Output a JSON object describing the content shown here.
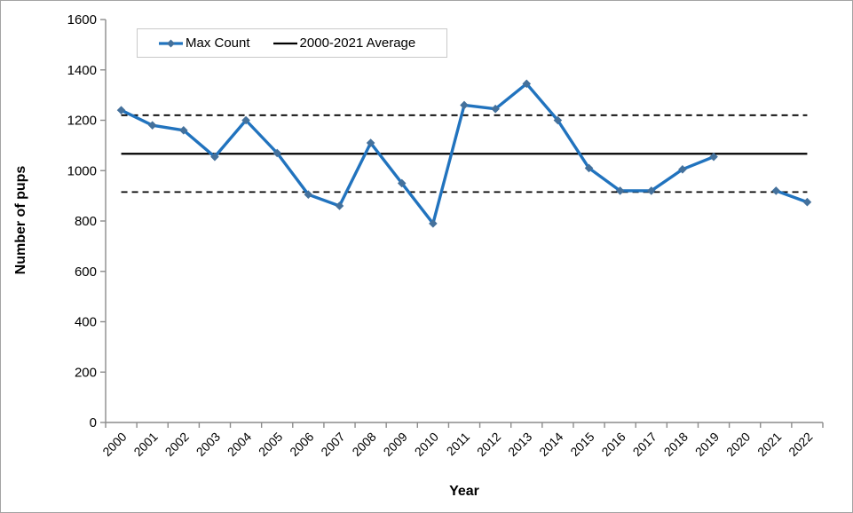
{
  "chart_data": {
    "type": "line",
    "title": "",
    "xlabel": "Year",
    "ylabel": "Number of pups",
    "ylim": [
      0,
      1600
    ],
    "yticks": [
      0,
      200,
      400,
      600,
      800,
      1000,
      1200,
      1400,
      1600
    ],
    "grid": false,
    "legend_position": "top-left",
    "axis_color": "#8c8c8c",
    "categories": [
      "2000",
      "2001",
      "2002",
      "2003",
      "2004",
      "2005",
      "2006",
      "2007",
      "2008",
      "2009",
      "2010",
      "2011",
      "2012",
      "2013",
      "2014",
      "2015",
      "2016",
      "2017",
      "2018",
      "2019",
      "2020",
      "2021",
      "2022"
    ],
    "series": [
      {
        "name": "Max Count",
        "type": "line-with-diamond-markers",
        "line_color": "#2173be",
        "marker_color": "#44719c",
        "values": [
          1240,
          1180,
          1160,
          1055,
          1200,
          1070,
          905,
          860,
          1110,
          950,
          790,
          1260,
          1245,
          1345,
          1200,
          1010,
          920,
          920,
          1005,
          1055,
          null,
          920,
          875
        ]
      }
    ],
    "reference_lines": [
      {
        "label": "2000-2021 Average",
        "value": 1067,
        "style": "solid",
        "color": "#000000"
      },
      {
        "value": 1220,
        "style": "dashed",
        "color": "#000000"
      },
      {
        "value": 915,
        "style": "dashed",
        "color": "#000000"
      }
    ]
  }
}
